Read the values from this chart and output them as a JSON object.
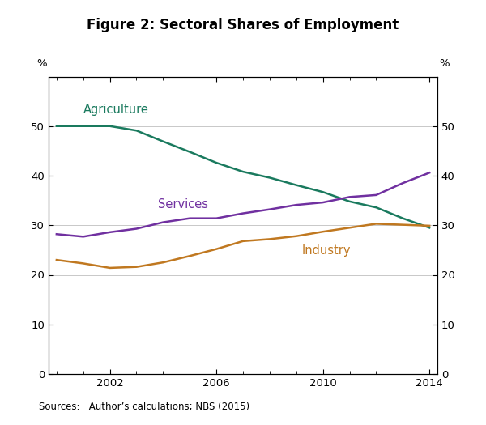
{
  "title": "Figure 2: Sectoral Shares of Employment",
  "source_text": "Sources:   Author’s calculations; NBS (2015)",
  "ylabel_left": "%",
  "ylabel_right": "%",
  "ylim": [
    0,
    60
  ],
  "yticks": [
    0,
    10,
    20,
    30,
    40,
    50
  ],
  "xlim_min": 2000,
  "xlim_max": 2014,
  "xticks": [
    2002,
    2006,
    2010,
    2014
  ],
  "years": [
    2000,
    2001,
    2002,
    2003,
    2004,
    2005,
    2006,
    2007,
    2008,
    2009,
    2010,
    2011,
    2012,
    2013,
    2014
  ],
  "agriculture": [
    50.0,
    50.0,
    50.0,
    49.1,
    46.9,
    44.8,
    42.6,
    40.8,
    39.6,
    38.1,
    36.7,
    34.8,
    33.6,
    31.4,
    29.5
  ],
  "services": [
    28.2,
    27.7,
    28.6,
    29.3,
    30.6,
    31.4,
    31.4,
    32.4,
    33.2,
    34.1,
    34.6,
    35.7,
    36.1,
    38.5,
    40.6
  ],
  "industry": [
    23.0,
    22.3,
    21.4,
    21.6,
    22.5,
    23.8,
    25.2,
    26.8,
    27.2,
    27.8,
    28.7,
    29.5,
    30.3,
    30.1,
    29.9
  ],
  "agriculture_color": "#1a7a5e",
  "services_color": "#7030a0",
  "industry_color": "#c07820",
  "agriculture_label": "Agriculture",
  "services_label": "Services",
  "industry_label": "Industry",
  "line_width": 1.8,
  "grid_color": "#c8c8c8",
  "background_color": "#ffffff",
  "title_fontsize": 12,
  "tick_fontsize": 9.5,
  "annotation_fontsize": 10.5,
  "source_fontsize": 8.5,
  "pct_label_fontsize": 9.5,
  "agri_ann_x": 2001.0,
  "agri_ann_y": 52.5,
  "serv_ann_x": 2003.8,
  "serv_ann_y": 33.5,
  "ind_ann_x": 2009.2,
  "ind_ann_y": 24.2
}
